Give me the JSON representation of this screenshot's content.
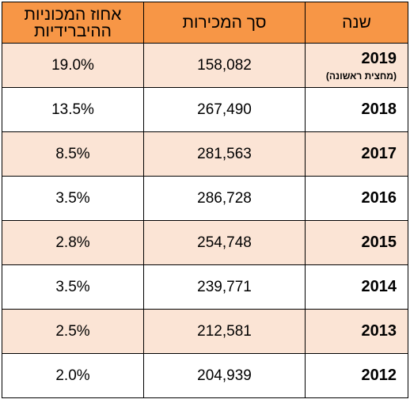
{
  "table": {
    "headers": {
      "year": "שנה",
      "sales": "סך המכירות",
      "pct_line1": "אחוז המכוניות",
      "pct_line2": "ההיברידיות"
    },
    "rows": [
      {
        "year": "2019",
        "note": "(מחצית ראשונה)",
        "sales": "158,082",
        "pct": "19.0%"
      },
      {
        "year": "2018",
        "sales": "267,490",
        "pct": "13.5%"
      },
      {
        "year": "2017",
        "sales": "281,563",
        "pct": "8.5%"
      },
      {
        "year": "2016",
        "sales": "286,728",
        "pct": "3.5%"
      },
      {
        "year": "2015",
        "sales": "254,748",
        "pct": "2.8%"
      },
      {
        "year": "2014",
        "sales": "239,771",
        "pct": "3.5%"
      },
      {
        "year": "2013",
        "sales": "212,581",
        "pct": "2.5%"
      },
      {
        "year": "2012",
        "sales": "204,939",
        "pct": "2.0%"
      }
    ]
  },
  "colors": {
    "header_bg": "#f79646",
    "shaded_row_bg": "#fbe4d5",
    "plain_row_bg": "#ffffff",
    "border": "#000000"
  }
}
